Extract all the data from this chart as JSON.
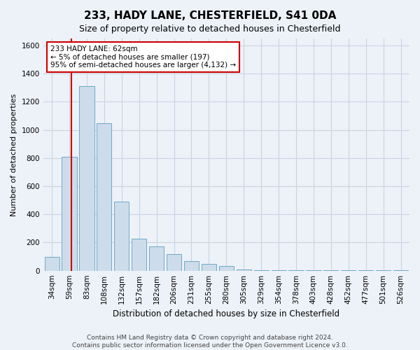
{
  "title1": "233, HADY LANE, CHESTERFIELD, S41 0DA",
  "title2": "Size of property relative to detached houses in Chesterfield",
  "xlabel": "Distribution of detached houses by size in Chesterfield",
  "ylabel": "Number of detached properties",
  "categories": [
    "34sqm",
    "59sqm",
    "83sqm",
    "108sqm",
    "132sqm",
    "157sqm",
    "182sqm",
    "206sqm",
    "231sqm",
    "255sqm",
    "280sqm",
    "305sqm",
    "329sqm",
    "354sqm",
    "378sqm",
    "403sqm",
    "428sqm",
    "452sqm",
    "477sqm",
    "501sqm",
    "526sqm"
  ],
  "values": [
    100,
    810,
    1310,
    1050,
    490,
    225,
    175,
    120,
    70,
    50,
    35,
    10,
    5,
    5,
    3,
    2,
    2,
    2,
    2,
    2,
    2
  ],
  "bar_color": "#cddcea",
  "bar_edge_color": "#6fa8c8",
  "annotation_line1": "233 HADY LANE: 62sqm",
  "annotation_line2": "← 5% of detached houses are smaller (197)",
  "annotation_line3": "95% of semi-detached houses are larger (4,132) →",
  "annotation_box_facecolor": "#ffffff",
  "annotation_box_edgecolor": "#cc0000",
  "red_line_color": "#cc0000",
  "grid_color": "#c8d4e4",
  "background_color": "#edf2f8",
  "footer1": "Contains HM Land Registry data © Crown copyright and database right 2024.",
  "footer2": "Contains public sector information licensed under the Open Government Licence v3.0.",
  "ylim": [
    0,
    1650
  ],
  "yticks": [
    0,
    200,
    400,
    600,
    800,
    1000,
    1200,
    1400,
    1600
  ],
  "title1_fontsize": 11,
  "title2_fontsize": 9,
  "xlabel_fontsize": 8.5,
  "ylabel_fontsize": 8,
  "tick_fontsize": 7.5,
  "footer_fontsize": 6.5,
  "annot_fontsize": 7.5
}
